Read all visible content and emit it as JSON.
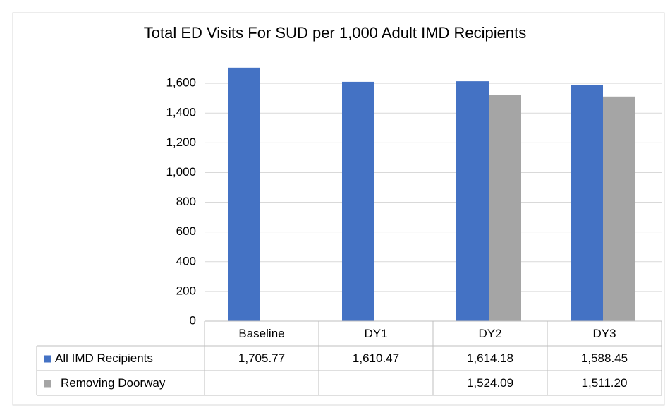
{
  "chart_data": {
    "type": "bar",
    "title": "Total ED Visits For SUD per 1,000 Adult IMD Recipients",
    "categories": [
      "Baseline",
      "DY1",
      "DY2",
      "DY3"
    ],
    "series": [
      {
        "name": "All IMD Recipients",
        "color": "#4472c4",
        "values": [
          1705.77,
          1610.47,
          1614.18,
          1588.45
        ],
        "value_labels": [
          "1,705.77",
          "1,610.47",
          "1,614.18",
          "1,588.45"
        ]
      },
      {
        "name": "Removing Doorway",
        "color": "#a5a5a5",
        "values": [
          null,
          null,
          1524.09,
          1511.2
        ],
        "value_labels": [
          null,
          null,
          "1,524.09",
          "1,511.20"
        ]
      }
    ],
    "ylim": [
      0,
      1800
    ],
    "yticks": [
      0,
      200,
      400,
      600,
      800,
      {
        "value": 1000,
        "label": "1,000"
      },
      {
        "value": 1200,
        "label": "1,200"
      },
      {
        "value": 1400,
        "label": "1,400"
      },
      {
        "value": 1600,
        "label": "1,600"
      }
    ],
    "grid": true
  }
}
